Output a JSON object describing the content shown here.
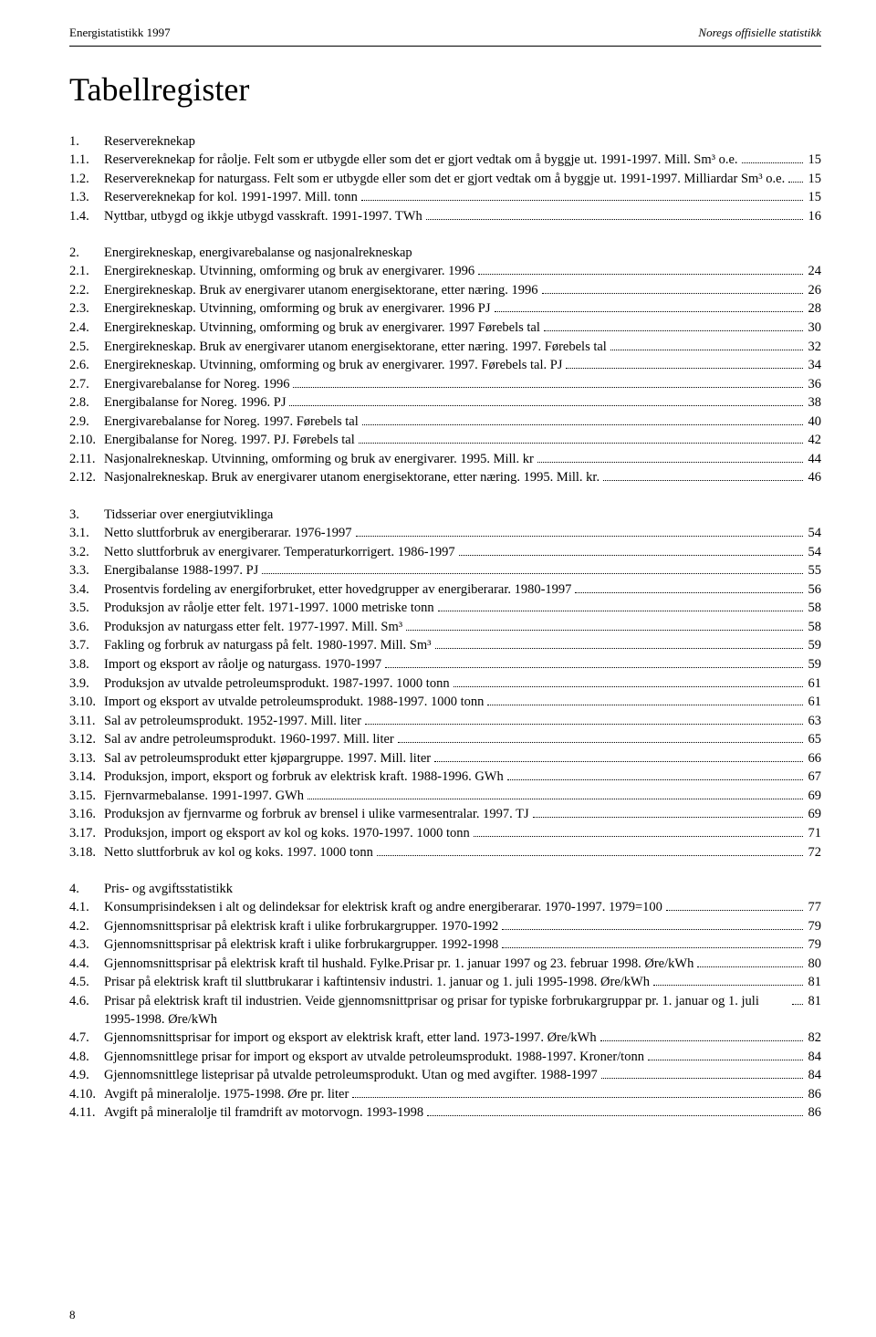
{
  "header": {
    "left": "Energistatistikk 1997",
    "right": "Noregs offisielle statistikk"
  },
  "title": "Tabellregister",
  "sections": [
    {
      "num": "1.",
      "title": "Reservereknekap",
      "entries": [
        {
          "num": "1.1.",
          "label": "Reservereknekap for råolje. Felt som er utbygde eller som det er gjort vedtak om å byggje ut. 1991-1997. Mill. Sm³ o.e.",
          "page": "15"
        },
        {
          "num": "1.2.",
          "label": "Reservereknekap for naturgass. Felt som er utbygde eller som det er gjort vedtak om å byggje ut. 1991-1997. Milliardar Sm³ o.e.",
          "page": "15"
        },
        {
          "num": "1.3.",
          "label": "Reservereknekap for kol. 1991-1997. Mill. tonn",
          "page": "15"
        },
        {
          "num": "1.4.",
          "label": "Nyttbar, utbygd og ikkje utbygd vasskraft. 1991-1997. TWh",
          "page": "16"
        }
      ]
    },
    {
      "num": "2.",
      "title": "Energirekneskap, energivarebalanse og nasjonalrekneskap",
      "entries": [
        {
          "num": "2.1.",
          "label": "Energirekneskap. Utvinning, omforming og bruk av energivarer. 1996",
          "page": "24"
        },
        {
          "num": "2.2.",
          "label": "Energirekneskap. Bruk av energivarer utanom energisektorane, etter næring. 1996",
          "page": "26"
        },
        {
          "num": "2.3.",
          "label": "Energirekneskap. Utvinning, omforming og bruk av energivarer. 1996 PJ",
          "page": "28"
        },
        {
          "num": "2.4.",
          "label": "Energirekneskap. Utvinning, omforming og bruk av energivarer. 1997 Førebels tal",
          "page": "30"
        },
        {
          "num": "2.5.",
          "label": "Energirekneskap. Bruk av energivarer utanom energisektorane, etter næring. 1997. Førebels tal",
          "page": "32"
        },
        {
          "num": "2.6.",
          "label": "Energirekneskap. Utvinning, omforming og bruk av energivarer. 1997. Førebels tal. PJ",
          "page": "34"
        },
        {
          "num": "2.7.",
          "label": "Energivarebalanse for Noreg. 1996",
          "page": "36"
        },
        {
          "num": "2.8.",
          "label": "Energibalanse for Noreg. 1996. PJ",
          "page": "38"
        },
        {
          "num": "2.9.",
          "label": "Energivarebalanse for Noreg. 1997. Førebels tal",
          "page": "40"
        },
        {
          "num": "2.10.",
          "label": "Energibalanse for Noreg. 1997. PJ. Førebels tal",
          "page": "42"
        },
        {
          "num": "2.11.",
          "label": "Nasjonalrekneskap. Utvinning, omforming og bruk av energivarer. 1995. Mill. kr",
          "page": "44"
        },
        {
          "num": "2.12.",
          "label": "Nasjonalrekneskap. Bruk av energivarer utanom energisektorane, etter næring. 1995. Mill. kr.",
          "page": "46"
        }
      ]
    },
    {
      "num": "3.",
      "title": "Tidsseriar over energiutviklinga",
      "entries": [
        {
          "num": "3.1.",
          "label": "Netto sluttforbruk av energiberarar. 1976-1997",
          "page": "54"
        },
        {
          "num": "3.2.",
          "label": "Netto sluttforbruk av energivarer. Temperaturkorrigert. 1986-1997",
          "page": "54"
        },
        {
          "num": "3.3.",
          "label": "Energibalanse 1988-1997. PJ",
          "page": "55"
        },
        {
          "num": "3.4.",
          "label": "Prosentvis fordeling av energiforbruket, etter hovedgrupper av energiberarar. 1980-1997",
          "page": "56"
        },
        {
          "num": "3.5.",
          "label": "Produksjon av råolje etter felt. 1971-1997. 1000 metriske tonn",
          "page": "58"
        },
        {
          "num": "3.6.",
          "label": "Produksjon av naturgass etter felt. 1977-1997. Mill. Sm³",
          "page": "58"
        },
        {
          "num": "3.7.",
          "label": "Fakling og forbruk av naturgass på felt. 1980-1997. Mill. Sm³",
          "page": "59"
        },
        {
          "num": "3.8.",
          "label": "Import og eksport av råolje og naturgass. 1970-1997",
          "page": "59"
        },
        {
          "num": "3.9.",
          "label": "Produksjon av utvalde petroleumsprodukt. 1987-1997. 1000 tonn",
          "page": "61"
        },
        {
          "num": "3.10.",
          "label": "Import og eksport av utvalde petroleumsprodukt. 1988-1997. 1000 tonn",
          "page": "61"
        },
        {
          "num": "3.11.",
          "label": "Sal av petroleumsprodukt. 1952-1997. Mill. liter",
          "page": "63"
        },
        {
          "num": "3.12.",
          "label": "Sal av andre petroleumsprodukt. 1960-1997. Mill. liter",
          "page": "65"
        },
        {
          "num": "3.13.",
          "label": "Sal av petroleumsprodukt etter kjøpargruppe. 1997. Mill. liter",
          "page": "66"
        },
        {
          "num": "3.14.",
          "label": "Produksjon, import, eksport og forbruk av elektrisk kraft. 1988-1996. GWh",
          "page": "67"
        },
        {
          "num": "3.15.",
          "label": "Fjernvarmebalanse. 1991-1997. GWh",
          "page": "69"
        },
        {
          "num": "3.16.",
          "label": "Produksjon av fjernvarme og forbruk av brensel i ulike varmesentralar. 1997. TJ",
          "page": "69"
        },
        {
          "num": "3.17.",
          "label": "Produksjon, import og eksport av kol og koks. 1970-1997. 1000 tonn",
          "page": "71"
        },
        {
          "num": "3.18.",
          "label": "Netto sluttforbruk av kol og koks. 1997. 1000 tonn",
          "page": "72"
        }
      ]
    },
    {
      "num": "4.",
      "title": "Pris- og avgiftsstatistikk",
      "entries": [
        {
          "num": "4.1.",
          "label": "Konsumprisindeksen i alt og delindeksar for elektrisk kraft og andre energiberarar. 1970-1997. 1979=100",
          "page": "77"
        },
        {
          "num": "4.2.",
          "label": "Gjennomsnittsprisar på elektrisk kraft i ulike forbrukargrupper. 1970-1992",
          "page": "79"
        },
        {
          "num": "4.3.",
          "label": "Gjennomsnittsprisar på elektrisk kraft i ulike forbrukargrupper. 1992-1998",
          "page": "79"
        },
        {
          "num": "4.4.",
          "label": "Gjennomsnittsprisar på elektrisk kraft til hushald. Fylke.Prisar pr. 1. januar 1997 og 23. februar 1998. Øre/kWh",
          "page": "80"
        },
        {
          "num": "4.5.",
          "label": "Prisar på elektrisk kraft til sluttbrukarar i kaftintensiv industri. 1. januar og 1. juli 1995-1998. Øre/kWh",
          "page": "81"
        },
        {
          "num": "4.6.",
          "label": "Prisar på elektrisk kraft til industrien. Veide gjennomsnittprisar og prisar for typiske forbrukargruppar pr. 1. januar og 1. juli 1995-1998. Øre/kWh",
          "page": "81"
        },
        {
          "num": "4.7.",
          "label": "Gjennomsnittsprisar for import og eksport av elektrisk kraft, etter land. 1973-1997. Øre/kWh",
          "page": "82"
        },
        {
          "num": "4.8.",
          "label": "Gjennomsnittlege prisar for import og eksport av utvalde petroleumsprodukt. 1988-1997. Kroner/tonn",
          "page": "84"
        },
        {
          "num": "4.9.",
          "label": "Gjennomsnittlege listeprisar på utvalde petroleumsprodukt. Utan og med avgifter. 1988-1997",
          "page": "84"
        },
        {
          "num": "4.10.",
          "label": "Avgift på mineralolje. 1975-1998. Øre pr. liter",
          "page": "86"
        },
        {
          "num": "4.11.",
          "label": "Avgift på mineralolje til framdrift av motorvogn. 1993-1998",
          "page": "86"
        }
      ]
    }
  ],
  "footerPage": "8"
}
